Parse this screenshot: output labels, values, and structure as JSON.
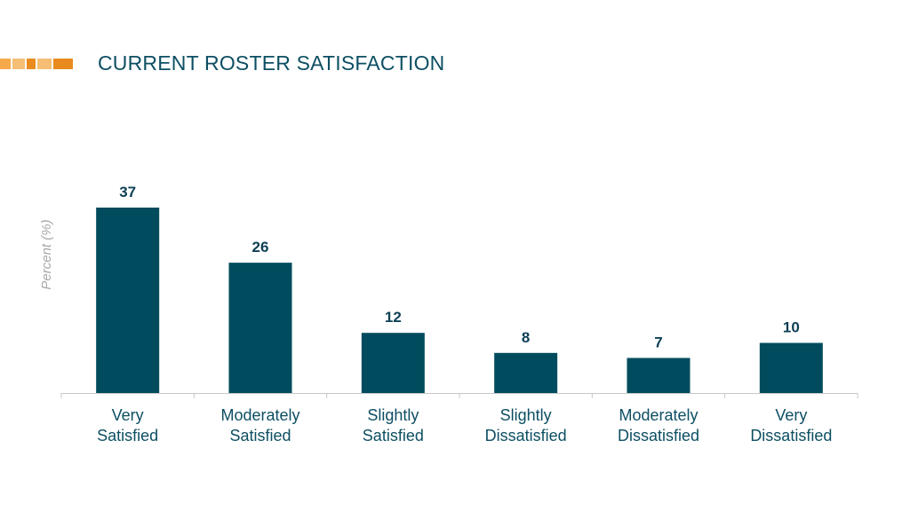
{
  "page": {
    "title": "CURRENT ROSTER SATISFACTION",
    "accent_color": "#e88a1e"
  },
  "chart_data": {
    "type": "bar",
    "ylabel": "Percent (%)",
    "xlabel": "",
    "categories": [
      [
        "Very",
        "Satisfied"
      ],
      [
        "Moderately",
        "Satisfied"
      ],
      [
        "Slightly",
        "Satisfied"
      ],
      [
        "Slightly",
        "Dissatisfied"
      ],
      [
        "Moderately",
        "Dissatisfied"
      ],
      [
        "Very",
        "Dissatisfied"
      ]
    ],
    "values": [
      37,
      26,
      12,
      8,
      7,
      10
    ],
    "data_labels": true,
    "ylim": [
      0,
      37
    ],
    "grid": false,
    "legend": "none",
    "bar_color": "#004b5d",
    "axis_color": "#c8c8c8",
    "label_color": "#0d4f63"
  }
}
